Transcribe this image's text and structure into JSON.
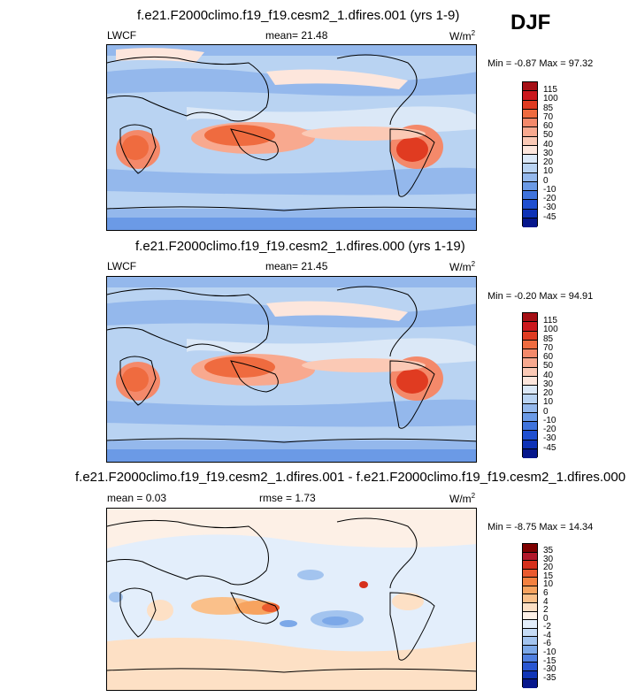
{
  "season": "DJF",
  "units_label": "W/m",
  "units_exp": "2",
  "panels": [
    {
      "title": "f.e21.F2000climo.f19_f19.cesm2_1.dfires.001 (yrs 1-9)",
      "left_label": "LWCF",
      "center_label": "mean=  21.48",
      "minmax": "Min =  -0.87 Max =  97.32",
      "levels": [
        "115",
        "100",
        "85",
        "70",
        "60",
        "50",
        "40",
        "30",
        "20",
        "10",
        "0",
        "-10",
        "-20",
        "-30",
        "-45"
      ],
      "colors": [
        "#a50f15",
        "#cb181d",
        "#e03b21",
        "#ef6b3f",
        "#f4896a",
        "#f8a98f",
        "#fbc9b5",
        "#fde6dc",
        "#dbe8f7",
        "#b9d3f2",
        "#94b8ec",
        "#6b9ae6",
        "#3f73dc",
        "#1f4fd0",
        "#0e32b6",
        "#06178c"
      ]
    },
    {
      "title": "f.e21.F2000climo.f19_f19.cesm2_1.dfires.000 (yrs 1-19)",
      "left_label": "LWCF",
      "center_label": "",
      "minmax": "Min =  -0.20 Max =  94.91",
      "levels": [
        "115",
        "100",
        "85",
        "70",
        "60",
        "50",
        "40",
        "30",
        "20",
        "10",
        "0",
        "-10",
        "-20",
        "-30",
        "-45"
      ],
      "colors": [
        "#a50f15",
        "#cb181d",
        "#e03b21",
        "#ef6b3f",
        "#f4896a",
        "#f8a98f",
        "#fbc9b5",
        "#fde6dc",
        "#dbe8f7",
        "#b9d3f2",
        "#94b8ec",
        "#6b9ae6",
        "#3f73dc",
        "#1f4fd0",
        "#0e32b6",
        "#06178c"
      ]
    },
    {
      "title": "f.e21.F2000climo.f19_f19.cesm2_1.dfires.001 - f.e21.F2000climo.f19_f19.cesm2_1.dfires.000",
      "left_label": "mean =   0.03",
      "center_label": "rmse =   1.73",
      "minmax": "Min =  -8.75 Max =  14.34",
      "levels": [
        "35",
        "30",
        "20",
        "15",
        "10",
        "6",
        "4",
        "2",
        "0",
        "-2",
        "-4",
        "-6",
        "-10",
        "-15",
        "-30",
        "-35"
      ],
      "colors": [
        "#7f0000",
        "#b2182b",
        "#d6301c",
        "#ea5a2e",
        "#f4813f",
        "#f7a35f",
        "#fac08a",
        "#fde0c5",
        "#fdf0e6",
        "#e3eefb",
        "#c6dcf6",
        "#a3c4ef",
        "#7ca8e8",
        "#4f7fe0",
        "#2a57d2",
        "#1035b6",
        "#07178c"
      ]
    }
  ],
  "panel2_mean": "mean=  21.45"
}
